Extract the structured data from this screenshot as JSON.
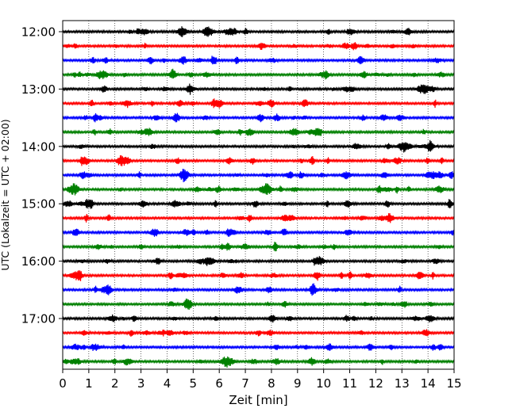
{
  "chart_data": {
    "type": "line",
    "subtype": "helicorder",
    "xlabel": "Zeit  [min]",
    "ylabel": "UTC (Lokalzeit = UTC + 02:00)",
    "xlim": [
      0,
      15
    ],
    "x_ticks": [
      "0",
      "1",
      "2",
      "3",
      "4",
      "5",
      "6",
      "7",
      "8",
      "9",
      "10",
      "11",
      "12",
      "13",
      "14",
      "15"
    ],
    "y_ticks": [
      "12:00",
      "13:00",
      "14:00",
      "15:00",
      "16:00",
      "17:00"
    ],
    "trace_start_times": [
      "12:00",
      "12:15",
      "12:30",
      "12:45",
      "13:00",
      "13:15",
      "13:30",
      "13:45",
      "14:00",
      "14:15",
      "14:30",
      "14:45",
      "15:00",
      "15:15",
      "15:30",
      "15:45",
      "16:00",
      "16:15",
      "16:30",
      "16:45",
      "17:00",
      "17:15",
      "17:30",
      "17:45"
    ],
    "trace_minutes": 15,
    "colors": [
      "#000000",
      "#ff0000",
      "#0000ff",
      "#008000"
    ],
    "grid_x": "dotted vertical every 1 min",
    "notable_events": [
      {
        "trace": "14:00",
        "minute": 13.1
      },
      {
        "trace": "14:45",
        "minute": 7.8
      },
      {
        "trace": "17:45",
        "minute": 6.3
      }
    ]
  }
}
